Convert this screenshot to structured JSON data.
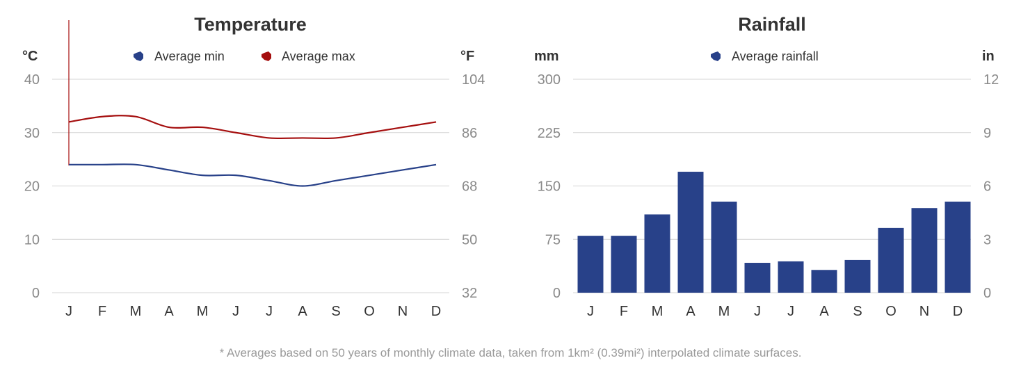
{
  "colors": {
    "min": "#284189",
    "max": "#a50f0f",
    "rain": "#284189"
  },
  "chart_data": [
    {
      "type": "line",
      "title": "Temperature",
      "left_unit": "°C",
      "right_unit": "°F",
      "categories": [
        "J",
        "F",
        "M",
        "A",
        "M",
        "J",
        "J",
        "A",
        "S",
        "O",
        "N",
        "D"
      ],
      "ylim": [
        0,
        40
      ],
      "left_ticks": [
        "0",
        "10",
        "20",
        "30",
        "40"
      ],
      "right_ticks": [
        "32",
        "50",
        "68",
        "86",
        "104"
      ],
      "grid": true,
      "legend_position": "top-center",
      "series": [
        {
          "name": "Average min",
          "values": [
            24,
            24,
            24,
            23,
            22,
            22,
            21,
            20,
            21,
            22,
            23,
            24
          ]
        },
        {
          "name": "Average max",
          "values": [
            32,
            33,
            33,
            31,
            31,
            30,
            29,
            29,
            29,
            30,
            31,
            32
          ]
        }
      ]
    },
    {
      "type": "bar",
      "title": "Rainfall",
      "left_unit": "mm",
      "right_unit": "in",
      "categories": [
        "J",
        "F",
        "M",
        "A",
        "M",
        "J",
        "J",
        "A",
        "S",
        "O",
        "N",
        "D"
      ],
      "ylim": [
        0,
        300
      ],
      "left_ticks": [
        "0",
        "75",
        "150",
        "225",
        "300"
      ],
      "right_ticks": [
        "0",
        "3",
        "6",
        "9",
        "12"
      ],
      "grid": true,
      "legend_position": "top-center",
      "series": [
        {
          "name": "Average rainfall",
          "values": [
            80,
            80,
            110,
            170,
            128,
            42,
            44,
            32,
            46,
            91,
            119,
            128
          ]
        }
      ]
    }
  ],
  "footnote": "* Averages based on 50 years of monthly climate data, taken from 1km² (0.39mi²) interpolated climate surfaces."
}
